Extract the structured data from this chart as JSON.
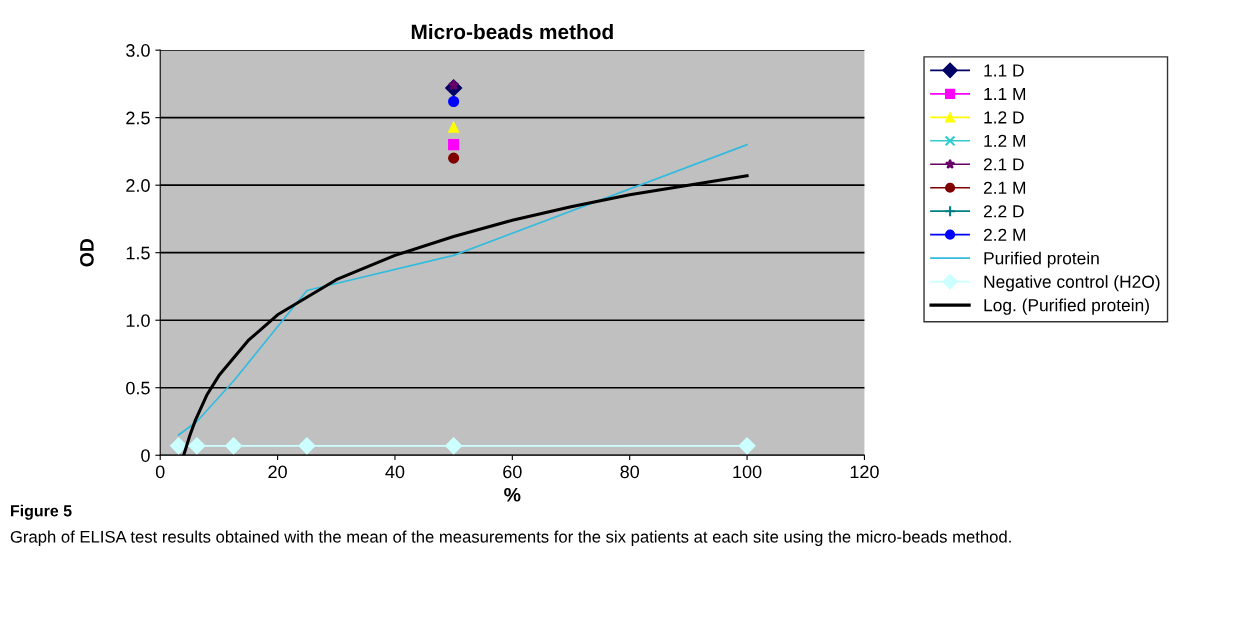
{
  "chart_data": {
    "type": "line",
    "title": "Micro-beads method",
    "xlabel": "%",
    "ylabel": "OD",
    "xlim": [
      0,
      120
    ],
    "xticks": [
      0,
      20,
      40,
      60,
      80,
      100,
      120
    ],
    "ylim": [
      0,
      3.0
    ],
    "yticks": [
      {
        "value": 0,
        "label": "0"
      },
      {
        "value": 0.5,
        "label": "0.5"
      },
      {
        "value": 1.0,
        "label": "1.0"
      },
      {
        "value": 1.5,
        "label": "1.5"
      },
      {
        "value": 2.0,
        "label": "2.0"
      },
      {
        "value": 2.5,
        "label": "2.5"
      },
      {
        "value": 3.0,
        "label": "3.0"
      }
    ],
    "grid": "y",
    "legend": "right",
    "series": [
      {
        "name": "1.1 D",
        "color": "#000066",
        "type": "scatter",
        "marker": "diamond",
        "x": [
          50
        ],
        "values": [
          2.72
        ]
      },
      {
        "name": "1.1 M",
        "color": "#ff00ff",
        "type": "scatter",
        "marker": "square",
        "x": [
          50
        ],
        "values": [
          2.3
        ]
      },
      {
        "name": "1.2 D",
        "color": "#ffff00",
        "type": "scatter",
        "marker": "triangle",
        "x": [
          50
        ],
        "values": [
          2.43
        ]
      },
      {
        "name": "1.2 M",
        "color": "#33cccc",
        "type": "scatter",
        "marker": "cross",
        "values": [
          null
        ]
      },
      {
        "name": "2.1 D",
        "color": "#660066",
        "type": "scatter",
        "marker": "star",
        "x": [
          50
        ],
        "values": [
          2.74
        ]
      },
      {
        "name": "2.1 M",
        "color": "#800000",
        "type": "scatter",
        "marker": "circle",
        "x": [
          50
        ],
        "values": [
          2.2
        ]
      },
      {
        "name": "2.2 D",
        "color": "#008080",
        "type": "scatter",
        "marker": "plus",
        "values": [
          null
        ]
      },
      {
        "name": "2.2 M",
        "color": "#0000ff",
        "type": "scatter",
        "marker": "circle",
        "x": [
          50
        ],
        "values": [
          2.62
        ]
      },
      {
        "name": "Purified protein",
        "color": "#33bbdd",
        "marker": "none",
        "x": [
          3.125,
          6.25,
          12.5,
          25,
          50,
          100
        ],
        "values": [
          0.15,
          0.25,
          0.55,
          1.22,
          1.48,
          2.3
        ]
      },
      {
        "name": "Negative control (H2O)",
        "color": "#ccffff",
        "marker": "diamond",
        "x": [
          3.125,
          6.25,
          12.5,
          25,
          50,
          100
        ],
        "values": [
          0.07,
          0.07,
          0.07,
          0.07,
          0.07,
          0.07
        ]
      },
      {
        "name": "Log. (Purified protein)",
        "color": "#000000",
        "marker": "none",
        "x": [
          4,
          5,
          6,
          8,
          10,
          15,
          20,
          30,
          40,
          50,
          60,
          70,
          80,
          90,
          100
        ],
        "values": [
          0.0,
          0.14,
          0.26,
          0.45,
          0.59,
          0.85,
          1.04,
          1.3,
          1.48,
          1.62,
          1.74,
          1.84,
          1.93,
          2.0,
          2.07
        ]
      }
    ],
    "annotations": [
      "Figure 5",
      "Graph of ELISA test results obtained with the mean of the measurements for the six patients at each site using the micro-beads method."
    ]
  }
}
